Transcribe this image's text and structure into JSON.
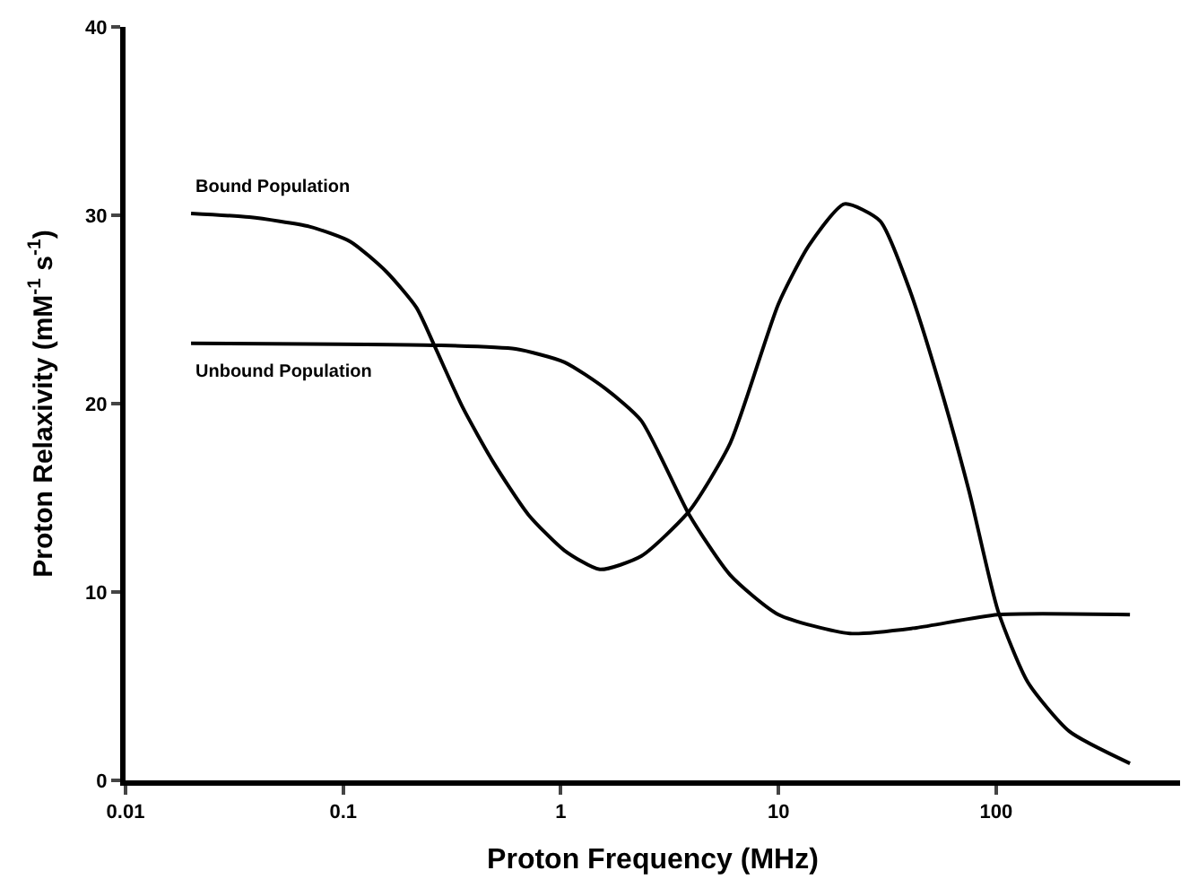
{
  "chart_data": {
    "type": "line",
    "xlabel": "Proton Frequency (MHz)",
    "ylabel": "Proton Relaxivity (mM$^{-1}$ s$^{-1}$)",
    "log": "x",
    "xlim": [
      0.01,
      700
    ],
    "xticks": [
      0.01,
      0.1,
      1,
      10,
      100
    ],
    "ylim": [
      0,
      40
    ],
    "yticks": [
      0,
      10,
      20,
      30,
      40
    ],
    "marker": "none",
    "line_style": "solid",
    "series": [
      {
        "color": "#000000",
        "x": [
          0.02,
          0.037,
          0.07,
          0.108,
          0.158,
          0.217,
          0.262,
          0.354,
          0.489,
          0.71,
          1.04,
          1.51,
          2.34,
          3.89,
          6.0,
          10,
          13.8,
          20.1,
          29.3,
          39.6,
          54.7,
          75.3,
          102,
          140,
          217,
          412
        ],
        "values": [
          30.1,
          29.9,
          29.4,
          28.6,
          27.0,
          25.1,
          23.1,
          19.8,
          16.9,
          14.1,
          12.2,
          11.2,
          11.9,
          14.3,
          17.9,
          25.3,
          28.4,
          30.6,
          29.7,
          26.2,
          21.1,
          15.3,
          9.0,
          5.2,
          2.6,
          0.9
        ]
      },
      {
        "color": "#000000",
        "x": [
          0.02,
          0.262,
          0.62,
          1.04,
          1.6,
          2.34,
          3.89,
          6.0,
          10,
          21.3,
          43,
          102,
          412
        ],
        "values": [
          23.2,
          23.1,
          22.9,
          22.2,
          20.8,
          19.1,
          14.1,
          10.9,
          8.8,
          7.8,
          8.1,
          8.8,
          8.8
        ]
      }
    ],
    "annotations": [
      "Bound Population",
      "Unbound Population"
    ]
  }
}
